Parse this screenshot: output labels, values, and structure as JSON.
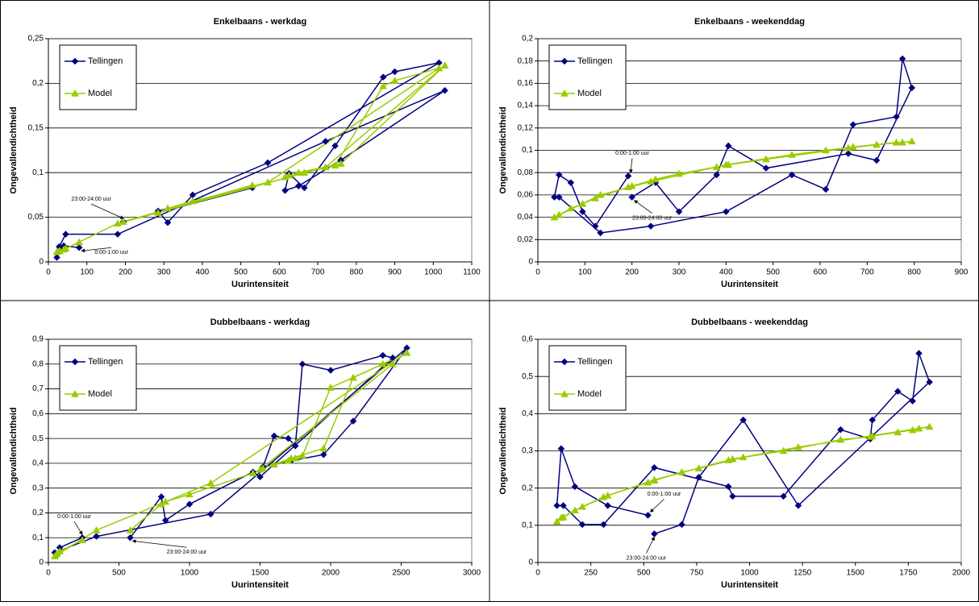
{
  "chart_data": [
    {
      "type": "line",
      "title": "Enkelbaans - werkdag",
      "x_label": "Uurintensiteit",
      "y_label": "Ongevallendichtheid",
      "xlim": [
        0,
        1100
      ],
      "xticks": [
        0,
        100,
        200,
        300,
        400,
        500,
        600,
        700,
        800,
        900,
        1000,
        1100
      ],
      "ylim": [
        0,
        0.25
      ],
      "yticks": [
        0,
        {
          "value": 0.05,
          "label": "0,05"
        },
        {
          "value": 0.1,
          "label": "0,1"
        },
        {
          "value": 0.15,
          "label": "0,15"
        },
        {
          "value": 0.2,
          "label": "0,2"
        },
        {
          "value": 0.25,
          "label": "0,25"
        }
      ],
      "grid": true,
      "legend": "upper left",
      "annotations": [
        "0:00-1:00 uur",
        "23:00-24:00 uur"
      ],
      "x": [
        80,
        40,
        30,
        22,
        28,
        45,
        180,
        720,
        1030,
        760,
        650,
        615,
        625,
        665,
        745,
        870,
        900,
        1015,
        570,
        375,
        310,
        285,
        530,
        195
      ],
      "series": [
        {
          "name": "Tellingen",
          "color": "#000080",
          "marker": "diamond",
          "values": [
            0.016,
            0.018,
            0.012,
            0.005,
            0.017,
            0.031,
            0.031,
            0.135,
            0.192,
            0.114,
            0.085,
            0.08,
            0.099,
            0.083,
            0.13,
            0.207,
            0.213,
            0.223,
            0.111,
            0.075,
            0.044,
            0.057,
            0.083,
            0.045
          ]
        },
        {
          "name": "Model",
          "color": "#99cc00",
          "marker": "triangle",
          "values": [
            0.022,
            0.014,
            0.012,
            0.011,
            0.012,
            0.015,
            0.043,
            0.106,
            0.22,
            0.11,
            0.1,
            0.095,
            0.097,
            0.1,
            0.108,
            0.197,
            0.203,
            0.217,
            0.089,
            0.068,
            0.06,
            0.055,
            0.086,
            0.045
          ]
        }
      ]
    },
    {
      "type": "line",
      "title": "Enkelbaans - weekenddag",
      "x_label": "Uurintensiteit",
      "y_label": "Ongevallendichtheid",
      "xlim": [
        0,
        900
      ],
      "xticks": [
        0,
        100,
        200,
        300,
        400,
        500,
        600,
        700,
        800,
        900
      ],
      "ylim": [
        0,
        0.2
      ],
      "yticks": [
        0,
        {
          "value": 0.02,
          "label": "0,02"
        },
        {
          "value": 0.04,
          "label": "0,04"
        },
        {
          "value": 0.06,
          "label": "0,06"
        },
        {
          "value": 0.08,
          "label": "0,08"
        },
        {
          "value": 0.1,
          "label": "0,1"
        },
        {
          "value": 0.12,
          "label": "0,12"
        },
        {
          "value": 0.14,
          "label": "0,14"
        },
        {
          "value": 0.16,
          "label": "0,16"
        },
        {
          "value": 0.18,
          "label": "0,18"
        },
        {
          "value": 0.2,
          "label": "0,2"
        }
      ],
      "grid": true,
      "legend": "upper left",
      "annotations": [
        "0:00-1:00 uur",
        "23:00-24:00 uur"
      ],
      "x": [
        192,
        122,
        95,
        70,
        45,
        35,
        45,
        133,
        240,
        400,
        540,
        612,
        670,
        762,
        775,
        795,
        720,
        660,
        485,
        405,
        380,
        300,
        250,
        200
      ],
      "series": [
        {
          "name": "Tellingen",
          "color": "#000080",
          "marker": "diamond",
          "values": [
            0.077,
            0.032,
            0.045,
            0.071,
            0.078,
            0.058,
            0.058,
            0.026,
            0.032,
            0.045,
            0.078,
            0.065,
            0.123,
            0.13,
            0.182,
            0.156,
            0.091,
            0.097,
            0.084,
            0.104,
            0.078,
            0.045,
            0.071,
            0.058
          ]
        },
        {
          "name": "Model",
          "color": "#99cc00",
          "marker": "triangle",
          "values": [
            0.067,
            0.057,
            0.052,
            0.048,
            0.042,
            0.04,
            0.042,
            0.06,
            0.072,
            0.087,
            0.096,
            0.1,
            0.103,
            0.107,
            0.107,
            0.108,
            0.105,
            0.102,
            0.092,
            0.087,
            0.085,
            0.079,
            0.074,
            0.068
          ]
        }
      ]
    },
    {
      "type": "line",
      "title": "Dubbelbaans - werkdag",
      "x_label": "Uurintensiteit",
      "y_label": "Ongevallendichtheid",
      "xlim": [
        0,
        3000
      ],
      "xticks": [
        0,
        500,
        1000,
        1500,
        2000,
        2500,
        3000
      ],
      "ylim": [
        0,
        0.9
      ],
      "yticks": [
        0,
        {
          "value": 0.1,
          "label": "0,1"
        },
        {
          "value": 0.2,
          "label": "0,2"
        },
        {
          "value": 0.3,
          "label": "0,3"
        },
        {
          "value": 0.4,
          "label": "0,4"
        },
        {
          "value": 0.5,
          "label": "0,5"
        },
        {
          "value": 0.6,
          "label": "0,6"
        },
        {
          "value": 0.7,
          "label": "0,7"
        },
        {
          "value": 0.8,
          "label": "0,8"
        },
        {
          "value": 0.9,
          "label": "0,9"
        }
      ],
      "grid": true,
      "legend": "upper left",
      "annotations": [
        "0:00-1:00 uur",
        "23:00-24:00 uur"
      ],
      "x": [
        240,
        80,
        60,
        45,
        340,
        1150,
        2540,
        2160,
        1950,
        1720,
        1520,
        1600,
        1700,
        1750,
        1800,
        2000,
        2370,
        2440,
        1500,
        1450,
        1000,
        830,
        800,
        580
      ],
      "series": [
        {
          "name": "Tellingen",
          "color": "#000080",
          "marker": "diamond",
          "values": [
            0.1,
            0.06,
            0.03,
            0.04,
            0.105,
            0.195,
            0.865,
            0.57,
            0.435,
            0.41,
            0.385,
            0.51,
            0.5,
            0.47,
            0.8,
            0.775,
            0.835,
            0.825,
            0.345,
            0.365,
            0.235,
            0.17,
            0.265,
            0.1
          ]
        },
        {
          "name": "Model",
          "color": "#99cc00",
          "marker": "triangle",
          "values": [
            0.09,
            0.045,
            0.035,
            0.025,
            0.13,
            0.32,
            0.845,
            0.745,
            0.46,
            0.42,
            0.38,
            0.395,
            0.41,
            0.42,
            0.43,
            0.705,
            0.8,
            0.8,
            0.375,
            0.36,
            0.275,
            0.245,
            0.235,
            0.13
          ]
        }
      ]
    },
    {
      "type": "line",
      "title": "Dubbelbaans - weekenddag",
      "x_label": "Uurintensiteit",
      "y_label": "Ongevallendichtheid",
      "xlim": [
        0,
        2000
      ],
      "xticks": [
        0,
        250,
        500,
        750,
        1000,
        1250,
        1500,
        1750,
        2000
      ],
      "ylim": [
        0,
        0.6
      ],
      "yticks": [
        0,
        {
          "value": 0.1,
          "label": "0,1"
        },
        {
          "value": 0.2,
          "label": "0,2"
        },
        {
          "value": 0.3,
          "label": "0,3"
        },
        {
          "value": 0.4,
          "label": "0,4"
        },
        {
          "value": 0.5,
          "label": "0,5"
        },
        {
          "value": 0.6,
          "label": "0,6"
        }
      ],
      "grid": true,
      "legend": "upper left",
      "annotations": [
        "0:00-1:00 uur",
        "23:00-24:00 uur"
      ],
      "x": [
        520,
        330,
        175,
        110,
        90,
        120,
        210,
        310,
        550,
        900,
        920,
        1160,
        1430,
        1570,
        1580,
        1700,
        1770,
        1800,
        1850,
        1230,
        970,
        760,
        680,
        550
      ],
      "series": [
        {
          "name": "Tellingen",
          "color": "#000080",
          "marker": "diamond",
          "values": [
            0.127,
            0.153,
            0.204,
            0.306,
            0.153,
            0.153,
            0.102,
            0.102,
            0.255,
            0.204,
            0.178,
            0.178,
            0.357,
            0.332,
            0.383,
            0.46,
            0.434,
            0.562,
            0.485,
            0.153,
            0.383,
            0.229,
            0.102,
            0.077
          ]
        },
        {
          "name": "Model",
          "color": "#99cc00",
          "marker": "triangle",
          "values": [
            0.215,
            0.18,
            0.14,
            0.12,
            0.11,
            0.122,
            0.15,
            0.176,
            0.222,
            0.275,
            0.278,
            0.3,
            0.33,
            0.338,
            0.34,
            0.35,
            0.356,
            0.36,
            0.365,
            0.31,
            0.283,
            0.253,
            0.243,
            0.22
          ]
        }
      ]
    }
  ]
}
